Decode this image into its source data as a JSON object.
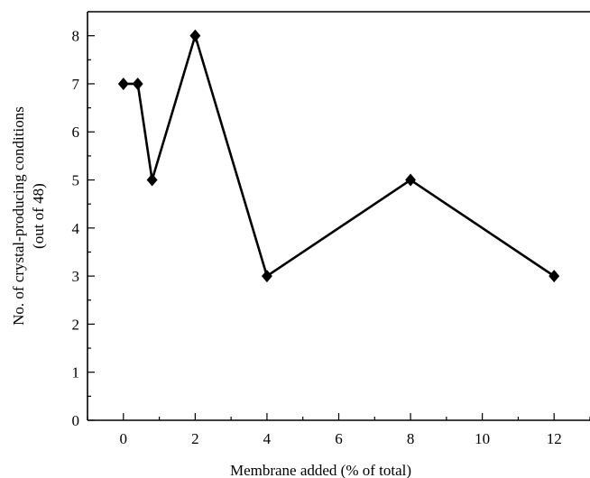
{
  "chart_data": {
    "type": "line",
    "xlabel": "Membrane added (% of total)",
    "ylabel_lines": [
      "No. of crystal-producing conditions",
      "(out of 48)"
    ],
    "xlim": [
      -1,
      13
    ],
    "ylim": [
      0,
      8.5
    ],
    "x_ticks": [
      0,
      2,
      4,
      6,
      8,
      10,
      12
    ],
    "y_ticks": [
      0,
      1,
      2,
      3,
      4,
      5,
      6,
      7,
      8
    ],
    "x_minor_ticks": [
      -1,
      1,
      3,
      5,
      7,
      9,
      11,
      13
    ],
    "y_minor_ticks": [
      0.5,
      1.5,
      2.5,
      3.5,
      4.5,
      5.5,
      6.5,
      7.5
    ],
    "grid": false,
    "marker": "diamond",
    "series": [
      {
        "x": [
          0,
          0.4,
          0.8,
          2,
          4,
          8,
          12
        ],
        "y": [
          7,
          7,
          5,
          8,
          3,
          5,
          3
        ]
      }
    ]
  }
}
